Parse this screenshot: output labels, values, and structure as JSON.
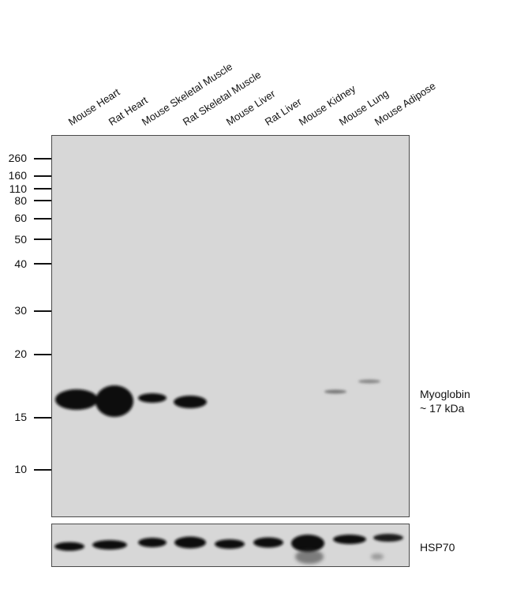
{
  "lanes": [
    "Mouse Heart",
    "Rat Heart",
    "Mouse Skeletal Muscle",
    "Rat Skeletal Muscle",
    "Mouse Liver",
    "Rat Liver",
    "Mouse Kidney",
    "Mouse Lung",
    "Mouse Adipose"
  ],
  "markers": [
    "260",
    "160",
    "110",
    "80",
    "60",
    "50",
    "40",
    "30",
    "20",
    "15",
    "10"
  ],
  "target": {
    "name": "Myoglobin",
    "size": "~ 17 kDa"
  },
  "loading_control": {
    "name": "HSP70"
  },
  "colors": {
    "membrane": "#d7d7d7",
    "band": "#0a0a0a"
  }
}
